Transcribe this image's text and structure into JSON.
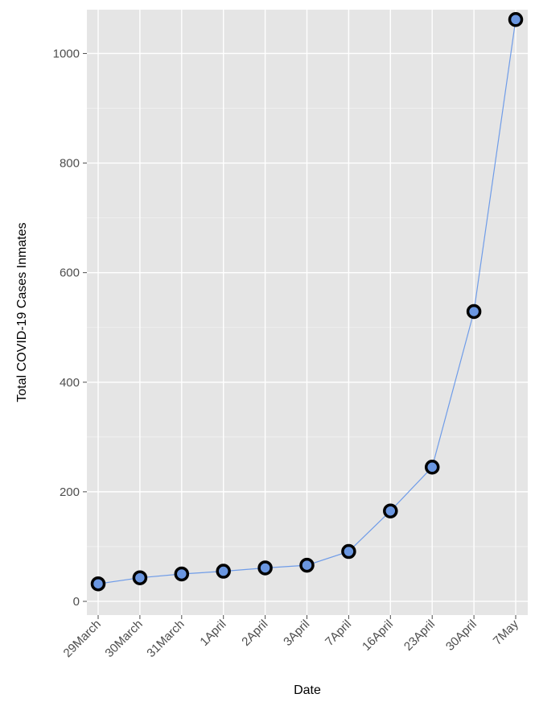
{
  "chart_data": {
    "type": "line",
    "xlabel": "Date",
    "ylabel": "Total COVID-19 Cases Inmates",
    "categories": [
      "29March",
      "30March",
      "31March",
      "1April",
      "2April",
      "3April",
      "7April",
      "16April",
      "23April",
      "30April",
      "7May"
    ],
    "series": [
      {
        "values": [
          32,
          43,
          50,
          55,
          61,
          66,
          91,
          165,
          245,
          529,
          1062
        ]
      }
    ],
    "ylim": [
      -25,
      1080
    ],
    "yticks": [
      0,
      200,
      400,
      600,
      800,
      1000
    ],
    "grid": true,
    "legend": "none"
  },
  "colors": {
    "panel_background": "#e5e5e5",
    "grid_major": "#ffffff",
    "line": "#6f9ce8",
    "marker_fill": "#6a96e0",
    "marker_stroke": "#000000"
  }
}
